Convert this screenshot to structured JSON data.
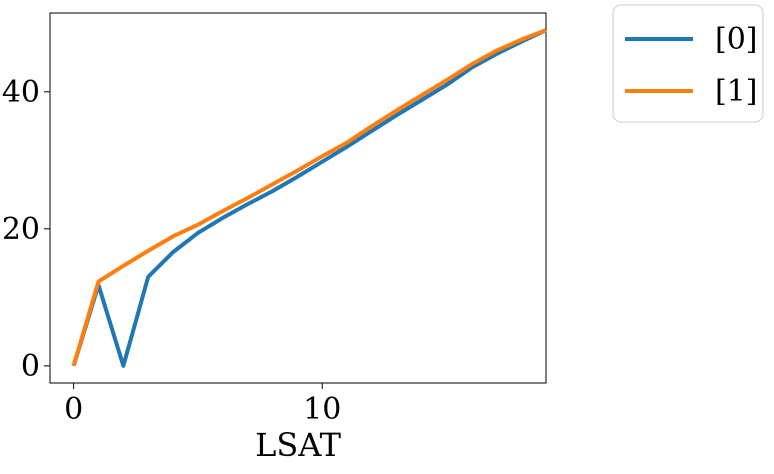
{
  "chart_data": {
    "type": "line",
    "title": "",
    "xlabel": "LSAT",
    "ylabel": "",
    "xlim": [
      -0.95,
      19.0
    ],
    "ylim": [
      -2.5,
      51.5
    ],
    "xticks": [
      0,
      10
    ],
    "yticks": [
      0,
      20,
      40
    ],
    "grid": false,
    "legend_placement": "outside-top-right",
    "series": [
      {
        "name": "[0]",
        "color": "#1f77b4",
        "x": [
          0,
          1,
          2,
          3,
          4,
          5,
          6,
          7,
          8,
          9,
          10,
          11,
          12,
          13,
          14,
          15,
          16,
          17,
          18,
          19
        ],
        "y": [
          0,
          11.8,
          0,
          13.0,
          16.6,
          19.4,
          21.6,
          23.6,
          25.5,
          27.6,
          29.8,
          32.0,
          34.3,
          36.6,
          38.8,
          41.0,
          43.5,
          45.5,
          47.3,
          49.0
        ]
      },
      {
        "name": "[1]",
        "color": "#ff7f0e",
        "x": [
          0,
          1,
          2,
          3,
          4,
          5,
          6,
          7,
          8,
          9,
          10,
          11,
          12,
          13,
          14,
          15,
          16,
          17,
          18,
          19
        ],
        "y": [
          0,
          12.3,
          14.6,
          16.8,
          18.9,
          20.6,
          22.6,
          24.5,
          26.5,
          28.5,
          30.6,
          32.6,
          35.0,
          37.3,
          39.5,
          41.7,
          44.0,
          46.0,
          47.6,
          49.0
        ]
      }
    ]
  }
}
